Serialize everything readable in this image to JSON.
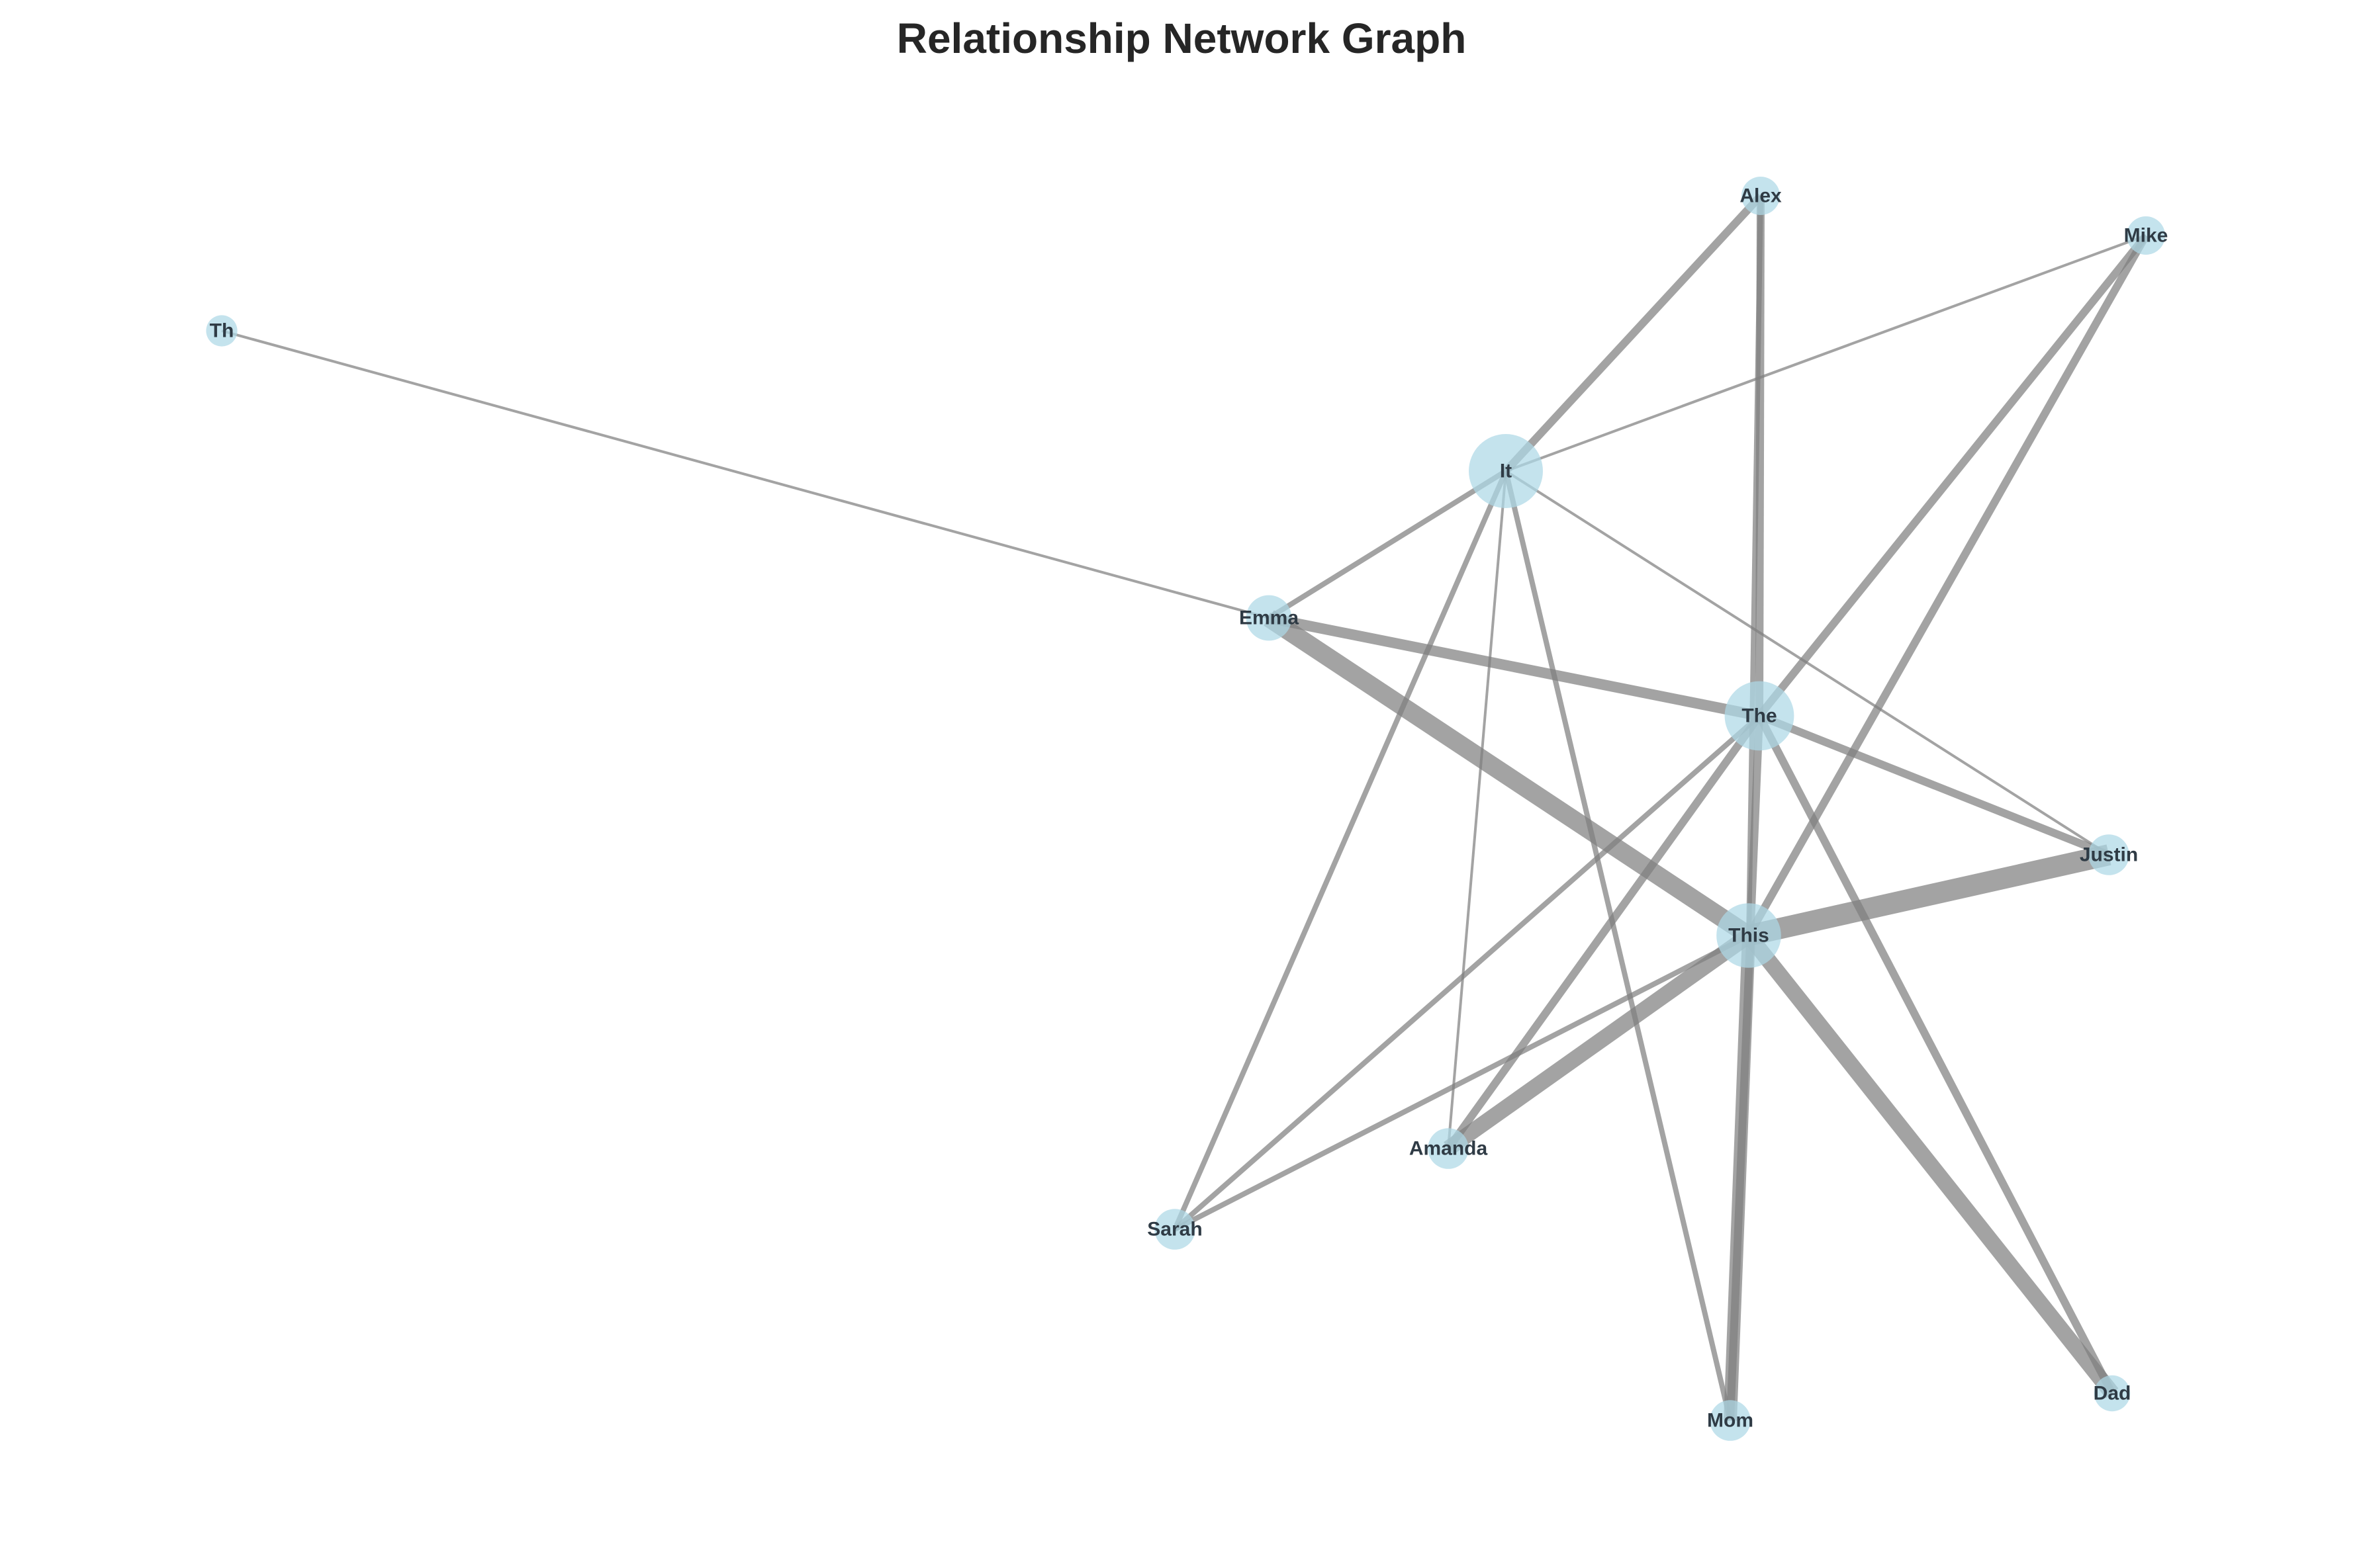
{
  "title": "Relationship Network Graph",
  "colors": {
    "node_fill": "#add8e6",
    "edge": "#808080",
    "label": "#2f3b45",
    "title": "#262626"
  },
  "chart_data": {
    "type": "network",
    "title": "Relationship Network Graph",
    "nodes": [
      {
        "id": "It",
        "label": "It",
        "weight": 10
      },
      {
        "id": "The",
        "label": "The",
        "weight": 9
      },
      {
        "id": "This",
        "label": "This",
        "weight": 8
      },
      {
        "id": "Emma",
        "label": "Emma",
        "weight": 4
      },
      {
        "id": "Justin",
        "label": "Justin",
        "weight": 3
      },
      {
        "id": "Amanda",
        "label": "Amanda",
        "weight": 3
      },
      {
        "id": "Mom",
        "label": "Mom",
        "weight": 3
      },
      {
        "id": "Sarah",
        "label": "Sarah",
        "weight": 3
      },
      {
        "id": "Alex",
        "label": "Alex",
        "weight": 2.5
      },
      {
        "id": "Mike",
        "label": "Mike",
        "weight": 2.5
      },
      {
        "id": "Dad",
        "label": "Dad",
        "weight": 2
      },
      {
        "id": "Th",
        "label": "Th",
        "weight": 1
      }
    ],
    "edges": [
      {
        "source": "Th",
        "target": "Emma",
        "weight": 1
      },
      {
        "source": "It",
        "target": "Alex",
        "weight": 3
      },
      {
        "source": "It",
        "target": "Mike",
        "weight": 1
      },
      {
        "source": "It",
        "target": "Emma",
        "weight": 2
      },
      {
        "source": "It",
        "target": "Justin",
        "weight": 1
      },
      {
        "source": "It",
        "target": "Sarah",
        "weight": 2
      },
      {
        "source": "It",
        "target": "Amanda",
        "weight": 1
      },
      {
        "source": "It",
        "target": "Mom",
        "weight": 2
      },
      {
        "source": "Alex",
        "target": "The",
        "weight": 3
      },
      {
        "source": "Alex",
        "target": "This",
        "weight": 2
      },
      {
        "source": "Mike",
        "target": "The",
        "weight": 3
      },
      {
        "source": "Mike",
        "target": "This",
        "weight": 3
      },
      {
        "source": "Emma",
        "target": "The",
        "weight": 4
      },
      {
        "source": "Emma",
        "target": "This",
        "weight": 7
      },
      {
        "source": "The",
        "target": "Justin",
        "weight": 3
      },
      {
        "source": "The",
        "target": "Sarah",
        "weight": 2
      },
      {
        "source": "The",
        "target": "Amanda",
        "weight": 3
      },
      {
        "source": "The",
        "target": "Mom",
        "weight": 3
      },
      {
        "source": "The",
        "target": "Dad",
        "weight": 3
      },
      {
        "source": "This",
        "target": "Justin",
        "weight": 8
      },
      {
        "source": "This",
        "target": "Amanda",
        "weight": 6
      },
      {
        "source": "This",
        "target": "Sarah",
        "weight": 2
      },
      {
        "source": "This",
        "target": "Mom",
        "weight": 5
      },
      {
        "source": "This",
        "target": "Dad",
        "weight": 6
      }
    ]
  }
}
